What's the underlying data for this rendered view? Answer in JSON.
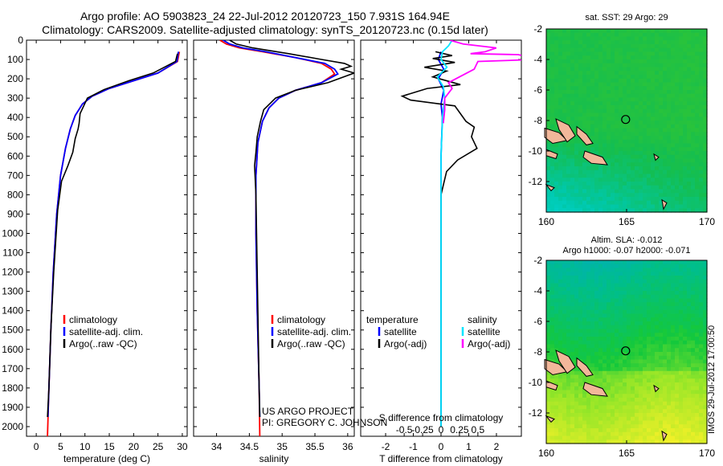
{
  "title_line1": "Argo profile: AO 5903823_24 22-Jul-2012 20120723_150 7.931S 164.94E",
  "title_line2": "Climatology: CARS2009. Satellite-adjusted climatology: synTS_20120723.nc (0.15d later)",
  "timestamp": "IMOS 29-Jul-2012 17:00:50",
  "colors": {
    "red": "#ff0000",
    "blue": "#0000ff",
    "black": "#000000",
    "cyan": "#00e5ff",
    "magenta": "#ff00ff"
  },
  "chart_data": [
    {
      "id": "temperature",
      "type": "line",
      "xlabel": "temperature (deg C)",
      "ylabel": "depth",
      "xlim": [
        -2,
        31
      ],
      "ylim": [
        2050,
        0
      ],
      "xticks": [
        0,
        5,
        10,
        15,
        20,
        25,
        30
      ],
      "xtick_labels": [
        "0",
        "5",
        "10",
        "15",
        "20",
        "25",
        "30"
      ],
      "yticks": [
        0,
        100,
        200,
        300,
        400,
        500,
        600,
        700,
        800,
        900,
        1000,
        1100,
        1200,
        1300,
        1400,
        1500,
        1600,
        1700,
        1800,
        1900,
        2000
      ],
      "ytick_labels": [
        "0",
        "100",
        "200",
        "300",
        "400",
        "500",
        "600",
        "700",
        "800",
        "900",
        "1000",
        "1100",
        "1200",
        "1300",
        "1400",
        "1500",
        "1600",
        "1700",
        "1800",
        "1900",
        "2000"
      ],
      "legend": [
        "climatology",
        "satellite-adj. clim.",
        "Argo(..raw -QC)"
      ],
      "series": [
        {
          "name": "climatology",
          "color": "red",
          "points": [
            [
              29.4,
              60
            ],
            [
              29,
              110
            ],
            [
              25,
              170
            ],
            [
              20,
              210
            ],
            [
              15,
              250
            ],
            [
              11.5,
              290
            ],
            [
              9.5,
              330
            ],
            [
              8,
              390
            ],
            [
              7,
              460
            ],
            [
              6,
              560
            ],
            [
              5,
              700
            ],
            [
              4.2,
              900
            ],
            [
              3.5,
              1200
            ],
            [
              3,
              1500
            ],
            [
              2.6,
              1800
            ],
            [
              2.3,
              2050
            ]
          ]
        },
        {
          "name": "satellite-adj. clim.",
          "color": "blue",
          "points": [
            [
              29.2,
              60
            ],
            [
              28.9,
              110
            ],
            [
              25,
              170
            ],
            [
              20,
              210
            ],
            [
              15,
              250
            ],
            [
              11.5,
              290
            ],
            [
              9.5,
              330
            ],
            [
              8,
              390
            ],
            [
              7,
              460
            ],
            [
              6,
              560
            ],
            [
              5,
              700
            ],
            [
              4.2,
              900
            ],
            [
              3.5,
              1200
            ],
            [
              3,
              1500
            ],
            [
              2.6,
              1800
            ],
            [
              2.4,
              1950
            ]
          ]
        },
        {
          "name": "Argo(..raw -QC)",
          "color": "black",
          "points": [
            [
              29,
              70
            ],
            [
              28.6,
              110
            ],
            [
              24,
              170
            ],
            [
              19,
              210
            ],
            [
              14,
              255
            ],
            [
              10.5,
              300
            ],
            [
              9,
              380
            ],
            [
              8.8,
              430
            ],
            [
              8.6,
              460
            ],
            [
              8,
              510
            ],
            [
              7.5,
              580
            ],
            [
              6.5,
              650
            ],
            [
              5.2,
              730
            ],
            [
              4.4,
              880
            ],
            [
              3.6,
              1200
            ],
            [
              3,
              1500
            ],
            [
              2.6,
              1800
            ],
            [
              2.3,
              1950
            ]
          ]
        }
      ]
    },
    {
      "id": "salinity",
      "type": "line",
      "xlabel": "salinity",
      "ylabel": "depth",
      "xlim": [
        33.65,
        36.1
      ],
      "ylim": [
        2050,
        0
      ],
      "xticks": [
        34,
        34.5,
        35,
        35.5,
        36
      ],
      "xtick_labels": [
        "34",
        "34.5",
        "35",
        "35.5",
        "36"
      ],
      "legend": [
        "climatology",
        "satellite-adj. clim.",
        "Argo(..raw -QC)"
      ],
      "annotation": [
        "US ARGO PROJECT",
        "PI: GREGORY C. JOHNSON"
      ],
      "series": [
        {
          "name": "climatology",
          "color": "red",
          "points": [
            [
              34.05,
              0
            ],
            [
              34.15,
              20
            ],
            [
              34.35,
              40
            ],
            [
              34.7,
              60
            ],
            [
              35.2,
              90
            ],
            [
              35.6,
              120
            ],
            [
              35.75,
              150
            ],
            [
              35.8,
              175
            ],
            [
              35.6,
              220
            ],
            [
              35.2,
              260
            ],
            [
              34.95,
              300
            ],
            [
              34.8,
              350
            ],
            [
              34.7,
              420
            ],
            [
              34.63,
              530
            ],
            [
              34.6,
              700
            ],
            [
              34.6,
              1000
            ],
            [
              34.62,
              1400
            ],
            [
              34.65,
              1800
            ],
            [
              34.66,
              2050
            ]
          ]
        },
        {
          "name": "satellite-adj. clim.",
          "color": "blue",
          "points": [
            [
              34.1,
              0
            ],
            [
              34.2,
              20
            ],
            [
              34.4,
              40
            ],
            [
              34.75,
              60
            ],
            [
              35.2,
              90
            ],
            [
              35.65,
              120
            ],
            [
              35.8,
              150
            ],
            [
              35.85,
              175
            ],
            [
              35.6,
              220
            ],
            [
              35.2,
              260
            ],
            [
              34.95,
              300
            ],
            [
              34.8,
              350
            ],
            [
              34.7,
              420
            ],
            [
              34.63,
              530
            ],
            [
              34.6,
              700
            ],
            [
              34.6,
              1000
            ],
            [
              34.62,
              1400
            ],
            [
              34.65,
              1800
            ],
            [
              34.66,
              1950
            ]
          ]
        },
        {
          "name": "Argo(..raw -QC)",
          "color": "black",
          "points": [
            [
              34.2,
              0
            ],
            [
              34.3,
              20
            ],
            [
              34.55,
              40
            ],
            [
              35.1,
              70
            ],
            [
              35.6,
              100
            ],
            [
              35.95,
              120
            ],
            [
              36.05,
              135
            ],
            [
              35.9,
              150
            ],
            [
              36.1,
              170
            ],
            [
              35.7,
              220
            ],
            [
              35.2,
              260
            ],
            [
              34.9,
              300
            ],
            [
              34.72,
              360
            ],
            [
              34.67,
              420
            ],
            [
              34.62,
              500
            ],
            [
              34.6,
              580
            ],
            [
              34.58,
              650
            ],
            [
              34.6,
              800
            ],
            [
              34.61,
              1000
            ],
            [
              34.63,
              1400
            ],
            [
              34.65,
              1800
            ],
            [
              34.66,
              1950
            ]
          ]
        }
      ]
    },
    {
      "id": "difference",
      "type": "line",
      "xlabel": "T difference from climatology",
      "xlabel_top": "S difference from climatology",
      "xlim": [
        -2.9,
        2.9
      ],
      "ylim": [
        2050,
        0
      ],
      "xticks": [
        -2,
        -1,
        0,
        1,
        2
      ],
      "xtick_labels": [
        "-2",
        "-1",
        "0",
        "1",
        "2"
      ],
      "sticks": [
        -0.5,
        -0.25,
        0,
        0.25,
        0.5
      ],
      "stick_labels": [
        "-0.5",
        "-0.25",
        "0",
        "0.25",
        "0.5"
      ],
      "legend_temperature_title": "temperature",
      "legend_salinity_title": "salinity",
      "legend_temperature": [
        "satellite",
        "Argo(-adj)"
      ],
      "legend_salinity": [
        "satellite",
        "Argo(-adj)"
      ],
      "series": [
        {
          "name": "T satellite",
          "color": "blue",
          "points": [
            [
              0,
              60
            ],
            [
              -0.1,
              100
            ],
            [
              0.1,
              150
            ],
            [
              -0.1,
              200
            ],
            [
              0.1,
              260
            ],
            [
              0,
              330
            ],
            [
              0.05,
              400
            ],
            [
              0,
              600
            ],
            [
              0,
              2000
            ]
          ]
        },
        {
          "name": "T Argo(-adj)",
          "color": "black",
          "points": [
            [
              -0.2,
              60
            ],
            [
              0.4,
              80
            ],
            [
              -0.3,
              95
            ],
            [
              0.5,
              115
            ],
            [
              -0.6,
              140
            ],
            [
              0.2,
              160
            ],
            [
              -0.3,
              190
            ],
            [
              0.7,
              230
            ],
            [
              -0.5,
              250
            ],
            [
              -1.4,
              290
            ],
            [
              -1.1,
              310
            ],
            [
              0.5,
              340
            ],
            [
              0.7,
              380
            ],
            [
              0.9,
              420
            ],
            [
              1.2,
              450
            ],
            [
              1.1,
              500
            ],
            [
              1.3,
              560
            ],
            [
              0.6,
              620
            ],
            [
              0.2,
              680
            ],
            [
              0,
              800
            ],
            [
              0,
              1000
            ],
            [
              0,
              1500
            ],
            [
              0,
              2000
            ]
          ]
        },
        {
          "name": "S satellite",
          "color": "cyan",
          "points": [
            [
              0.15,
              0
            ],
            [
              0.1,
              30
            ],
            [
              0.02,
              60
            ],
            [
              0,
              100
            ],
            [
              0.08,
              140
            ],
            [
              -0.05,
              190
            ],
            [
              0.03,
              240
            ],
            [
              0.05,
              300
            ],
            [
              0.02,
              400
            ],
            [
              0,
              600
            ],
            [
              0,
              1000
            ],
            [
              0,
              1500
            ],
            [
              0,
              2000
            ]
          ]
        },
        {
          "name": "S Argo(-adj)",
          "color": "magenta",
          "points": [
            [
              0.12,
              0
            ],
            [
              0.3,
              20
            ],
            [
              0.75,
              40
            ],
            [
              0.6,
              60
            ],
            [
              0.4,
              70
            ],
            [
              1.05,
              75
            ],
            [
              1.3,
              100
            ],
            [
              0.5,
              110
            ],
            [
              0.45,
              150
            ],
            [
              0.3,
              180
            ],
            [
              0.1,
              220
            ],
            [
              0.15,
              250
            ],
            [
              0.05,
              300
            ],
            [
              0.05,
              360
            ],
            [
              0.03,
              430
            ]
          ]
        }
      ]
    },
    {
      "id": "sst-map",
      "type": "heatmap",
      "title": "sat. SST: 29  Argo: 29",
      "xlim": [
        160,
        170
      ],
      "ylim": [
        -14,
        -2
      ],
      "xticks": [
        160,
        165,
        170
      ],
      "xtick_labels": [
        "160",
        "165",
        "170"
      ],
      "yticks": [
        -2,
        -4,
        -6,
        -8,
        -10,
        -12
      ],
      "ytick_labels": [
        "-2",
        "-4",
        "-6",
        "-8",
        "-10",
        "-12"
      ],
      "profile_position": [
        164.94,
        -7.931
      ]
    },
    {
      "id": "sla-map",
      "type": "heatmap",
      "title_line1": "Altim. SLA: -0.012",
      "title_line2": "Argo h1000: -0.07  h2000: -0.071",
      "xlim": [
        160,
        170
      ],
      "ylim": [
        -14,
        -2
      ],
      "xticks": [
        160,
        165,
        170
      ],
      "xtick_labels": [
        "160",
        "165",
        "170"
      ],
      "yticks": [
        -2,
        -4,
        -6,
        -8,
        -10,
        -12
      ],
      "ytick_labels": [
        "-2",
        "-4",
        "-6",
        "-8",
        "-10",
        "-12"
      ],
      "profile_position": [
        164.94,
        -7.931
      ]
    }
  ]
}
